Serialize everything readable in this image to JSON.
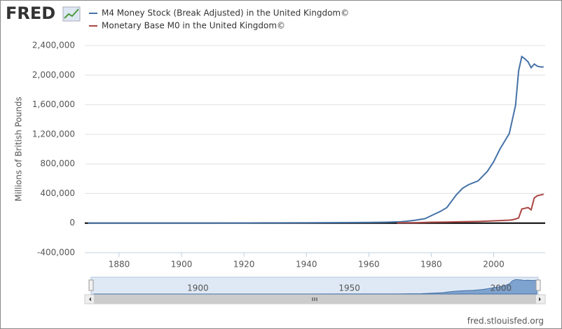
{
  "chart_data": {
    "type": "line",
    "logo": "FRED",
    "y_label": "Millions of British Pounds",
    "source": "fred.stlouisfed.org",
    "series": [
      {
        "name": "M4 Money Stock (Break Adjusted) in the United Kingdom©",
        "color": "#4572a7",
        "x": [
          1870,
          1880,
          1890,
          1900,
          1910,
          1920,
          1930,
          1940,
          1950,
          1960,
          1965,
          1970,
          1972,
          1975,
          1978,
          1980,
          1983,
          1985,
          1988,
          1990,
          1992,
          1995,
          1998,
          2000,
          2002,
          2005,
          2007,
          2008,
          2009,
          2010,
          2011,
          2012,
          2013,
          2014,
          2015,
          2016
        ],
        "values": [
          600,
          700,
          900,
          1100,
          1400,
          2500,
          3000,
          4000,
          7000,
          9000,
          12000,
          17000,
          25000,
          40000,
          60000,
          100000,
          160000,
          210000,
          380000,
          470000,
          520000,
          570000,
          700000,
          830000,
          1000000,
          1210000,
          1590000,
          2060000,
          2250000,
          2220000,
          2180000,
          2100000,
          2150000,
          2120000,
          2110000,
          2110000
        ]
      },
      {
        "name": "Monetary Base M0 in the United Kingdom©",
        "color": "#aa4643",
        "x": [
          1969,
          1975,
          1980,
          1985,
          1990,
          1995,
          2000,
          2005,
          2006,
          2007,
          2008,
          2009,
          2010,
          2011,
          2012,
          2013,
          2014,
          2015,
          2016
        ],
        "values": [
          4000,
          6000,
          11000,
          14000,
          18000,
          22000,
          30000,
          40000,
          45000,
          55000,
          70000,
          190000,
          200000,
          210000,
          180000,
          340000,
          370000,
          380000,
          390000
        ]
      }
    ],
    "xlim": [
      1869,
      2016.5
    ],
    "xticks": [
      1880,
      1900,
      1920,
      1940,
      1960,
      1980,
      2000
    ],
    "ylim": [
      -400000,
      2400000
    ],
    "yticks": [
      {
        "value": -400000,
        "label": "-400,000"
      },
      0,
      {
        "value": 400000,
        "label": "400,000"
      },
      {
        "value": 800000,
        "label": "800,000"
      },
      {
        "value": 1200000,
        "label": "1,200,000"
      },
      {
        "value": 1600000,
        "label": "1,600,000"
      },
      {
        "value": 2000000,
        "label": "2,000,000"
      },
      {
        "value": 2400000,
        "label": "2,400,000"
      }
    ],
    "grid": true,
    "navigator": {
      "xticks": [
        1900,
        1950,
        2000
      ]
    }
  }
}
